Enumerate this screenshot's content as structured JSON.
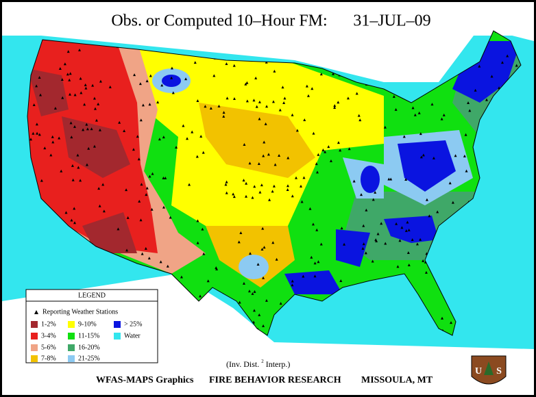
{
  "title": "Obs. or Computed 10–Hour FM:",
  "date": "31–JUL–09",
  "legend": {
    "title": "LEGEND",
    "stations": "Reporting Weather Stations",
    "items": [
      {
        "label": "1-2%",
        "color": "#a3282e"
      },
      {
        "label": "3-4%",
        "color": "#e8201e"
      },
      {
        "label": "5-6%",
        "color": "#f0a486"
      },
      {
        "label": "7-8%",
        "color": "#f2c200"
      },
      {
        "label": "9-10%",
        "color": "#ffff00"
      },
      {
        "label": "11-15%",
        "color": "#10e010"
      },
      {
        "label": "16-20%",
        "color": "#3fa868"
      },
      {
        "label": "21-25%",
        "color": "#8ccaf2"
      },
      {
        "label": "> 25%",
        "color": "#0a14e0"
      },
      {
        "label": "Water",
        "color": "#33e6ee"
      }
    ]
  },
  "note": {
    "text": "(Inv. Dist.",
    "sup": "2",
    "end": "Interp.)"
  },
  "footer": {
    "left": "WFAS-MAPS Graphics",
    "center": "FIRE BEHAVIOR RESEARCH",
    "right": "MISSOULA, MT"
  },
  "logo": {
    "left": "U",
    "right": "S"
  }
}
